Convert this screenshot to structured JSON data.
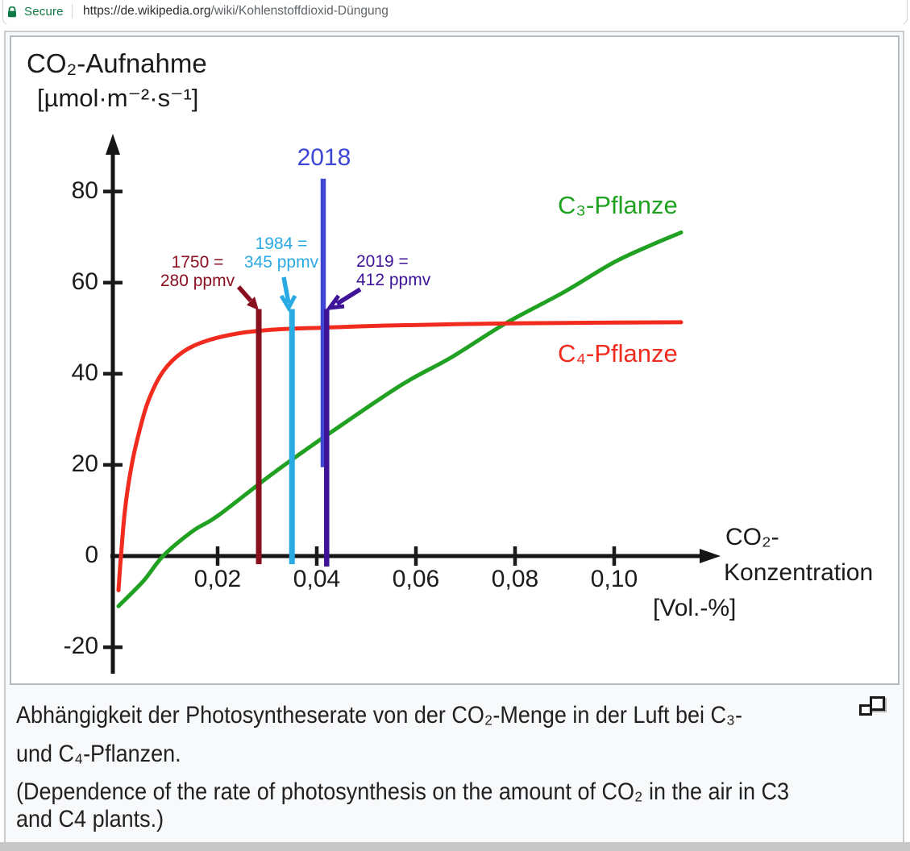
{
  "colors": {
    "secure_green": "#0e7a46",
    "thumb_bg": "#f8f9fa",
    "thumb_border": "#c8ccd1",
    "image_border": "#b6b9bc",
    "axis": "#1a1a1a",
    "bottom_bar": "#c8c8c8"
  },
  "browser": {
    "lock_icon": "lock-icon",
    "security_label": "Secure",
    "url": {
      "host": "https://de.wikipedia.org",
      "path": "/wiki/Kohlenstoffdioxid-Düngung"
    }
  },
  "chart_data": {
    "type": "line",
    "y_axis": {
      "title_line1": "CO₂-Aufnahme",
      "title_line2": "[µmol·m⁻²·s⁻¹]",
      "ticks": [
        {
          "label": "80",
          "value": 80
        },
        {
          "label": "60",
          "value": 60
        },
        {
          "label": "40",
          "value": 40
        },
        {
          "label": "20",
          "value": 20
        },
        {
          "label": "0",
          "value": 0
        },
        {
          "label": "-20",
          "value": -20
        }
      ],
      "range": [
        -25,
        90
      ]
    },
    "x_axis": {
      "title_line1": "CO₂-",
      "title_line2": "Konzentration",
      "unit": "[Vol.-%]",
      "ticks": [
        {
          "label": "0,02",
          "value": 0.02
        },
        {
          "label": "0,04",
          "value": 0.04
        },
        {
          "label": "0,06",
          "value": 0.06
        },
        {
          "label": "0,08",
          "value": 0.08
        },
        {
          "label": "0,10",
          "value": 0.1
        }
      ],
      "range": [
        0,
        0.118
      ]
    },
    "series": [
      {
        "name": "C₃-Pflanze",
        "color": "#21a121",
        "points": [
          [
            0,
            -11
          ],
          [
            0.005,
            -5.5
          ],
          [
            0.009,
            0
          ],
          [
            0.015,
            5.5
          ],
          [
            0.02,
            8.8
          ],
          [
            0.031,
            18
          ],
          [
            0.042,
            26.5
          ],
          [
            0.057,
            37.5
          ],
          [
            0.067,
            43.5
          ],
          [
            0.078,
            51
          ],
          [
            0.09,
            58
          ],
          [
            0.1,
            64.5
          ],
          [
            0.108,
            68.5
          ],
          [
            0.1135,
            71
          ]
        ]
      },
      {
        "name": "C₄-Pflanze",
        "color": "#f22b1f",
        "points": [
          [
            0,
            -7.5
          ],
          [
            0.0005,
            0
          ],
          [
            0.0013,
            10
          ],
          [
            0.0025,
            19
          ],
          [
            0.004,
            26.5
          ],
          [
            0.006,
            34
          ],
          [
            0.009,
            40.5
          ],
          [
            0.013,
            44.8
          ],
          [
            0.018,
            47.3
          ],
          [
            0.025,
            49
          ],
          [
            0.033,
            49.8
          ],
          [
            0.041,
            50.1
          ],
          [
            0.055,
            50.6
          ],
          [
            0.075,
            51
          ],
          [
            0.095,
            51.2
          ],
          [
            0.1135,
            51.3
          ]
        ]
      }
    ],
    "annotations": [
      {
        "id": "1750",
        "line1": "1750 =",
        "line2": "280 ppmv",
        "x": 0.0283,
        "ppmv": 280,
        "color": "#8a1020",
        "span": [
          -1.8,
          54.2
        ]
      },
      {
        "id": "1984",
        "line1": "1984 =",
        "line2": "345 ppmv",
        "x": 0.035,
        "ppmv": 345,
        "color": "#29aae3",
        "span": [
          -1.8,
          54.2
        ]
      },
      {
        "id": "2018",
        "line1": "2018",
        "x": 0.0413,
        "color": "#3e46d5",
        "span": [
          19.5,
          82.8
        ]
      },
      {
        "id": "2019",
        "line1": "2019 =",
        "line2": "412 ppmv",
        "x": 0.042,
        "ppmv": 412,
        "color": "#3e1397",
        "span": [
          -2.3,
          54.2
        ]
      }
    ]
  },
  "caption": {
    "expand_icon": "expand-icon",
    "german_line1": "Abhängigkeit der Photosyntheserate von der CO₂-Menge in der Luft bei C₃-",
    "german_line2": "und C₄-Pflanzen.",
    "english_line1": "(Dependence of the rate of photosynthesis on the amount of CO₂ in the air in C3",
    "english_line2": "and C4 plants.)"
  }
}
